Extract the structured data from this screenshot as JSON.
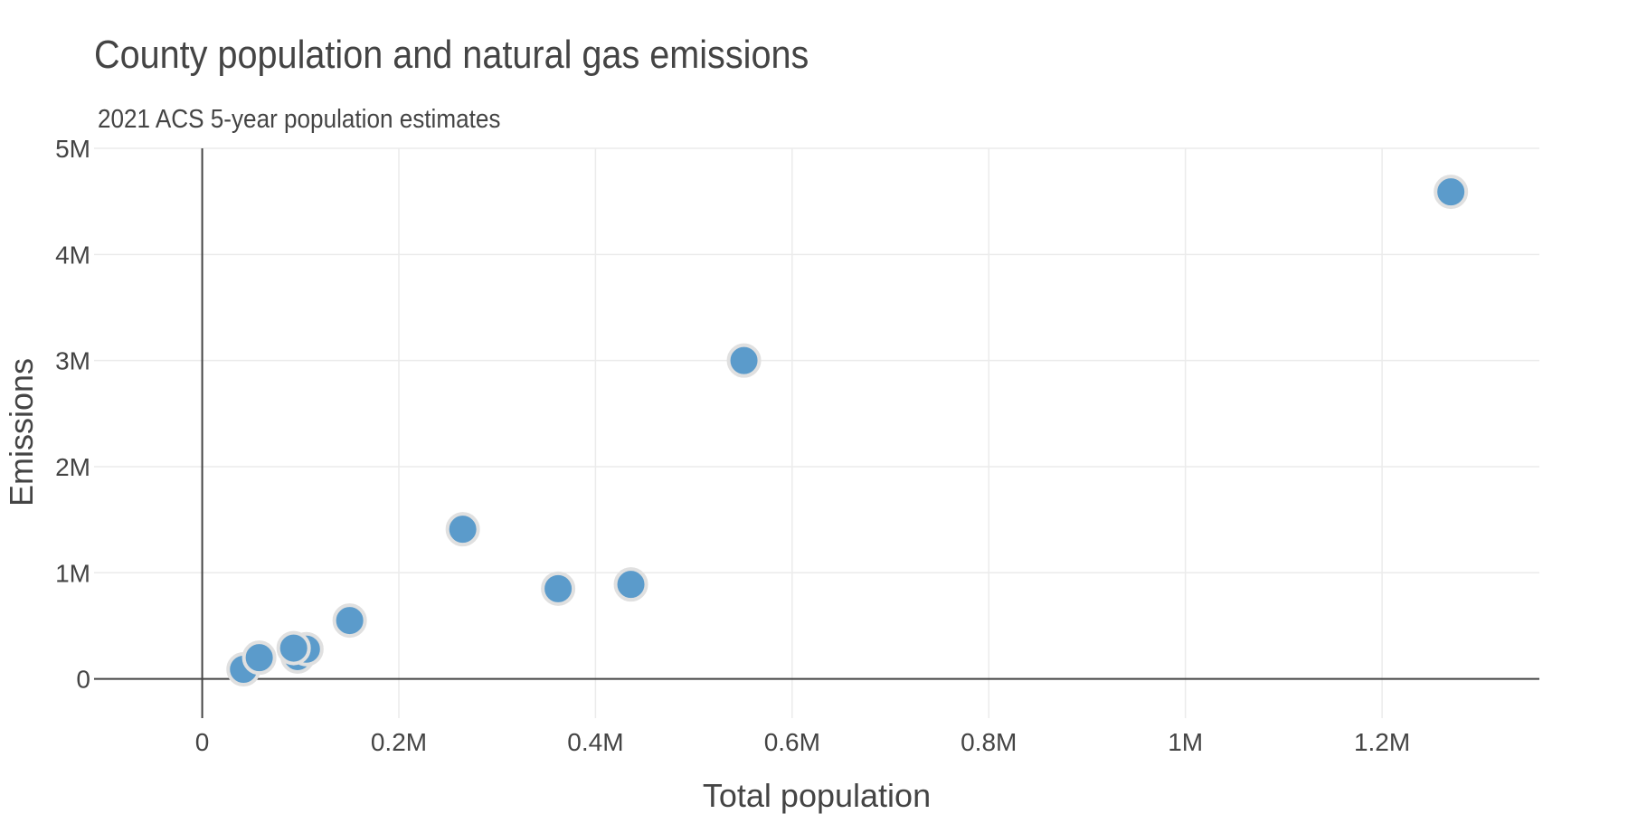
{
  "chart_data": {
    "type": "scatter",
    "title": "County population and natural gas emissions",
    "subtitle": "2021 ACS 5-year population estimates",
    "xlabel": "Total population",
    "ylabel": "Emissions",
    "xlim": [
      -0.11,
      1.36
    ],
    "ylim": [
      -0.37,
      5.0
    ],
    "x_unit": "millions",
    "y_unit": "millions",
    "x_ticks": [
      {
        "value": 0,
        "label": "0"
      },
      {
        "value": 0.2,
        "label": "0.2M"
      },
      {
        "value": 0.4,
        "label": "0.4M"
      },
      {
        "value": 0.6,
        "label": "0.6M"
      },
      {
        "value": 0.8,
        "label": "0.8M"
      },
      {
        "value": 1.0,
        "label": "1M"
      },
      {
        "value": 1.2,
        "label": "1.2M"
      }
    ],
    "y_ticks": [
      {
        "value": 0,
        "label": "0"
      },
      {
        "value": 1,
        "label": "1M"
      },
      {
        "value": 2,
        "label": "2M"
      },
      {
        "value": 3,
        "label": "3M"
      },
      {
        "value": 4,
        "label": "4M"
      },
      {
        "value": 5,
        "label": "5M"
      }
    ],
    "grid": true,
    "series": [
      {
        "color": "#5b9bcb",
        "points": [
          {
            "x": 0.042,
            "y": 0.09
          },
          {
            "x": 0.058,
            "y": 0.2
          },
          {
            "x": 0.097,
            "y": 0.21
          },
          {
            "x": 0.106,
            "y": 0.28
          },
          {
            "x": 0.093,
            "y": 0.29
          },
          {
            "x": 0.15,
            "y": 0.55
          },
          {
            "x": 0.265,
            "y": 1.41
          },
          {
            "x": 0.362,
            "y": 0.85
          },
          {
            "x": 0.436,
            "y": 0.89
          },
          {
            "x": 0.551,
            "y": 3.0
          },
          {
            "x": 1.27,
            "y": 4.59
          }
        ]
      }
    ]
  }
}
